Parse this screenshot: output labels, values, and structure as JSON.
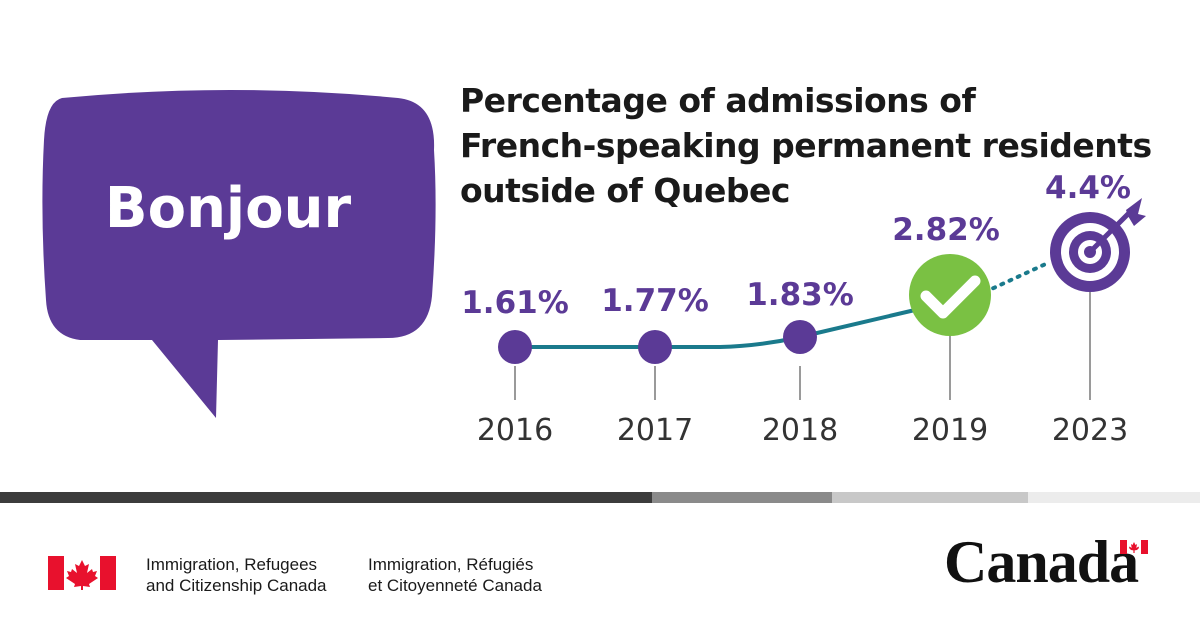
{
  "bubble": {
    "text": "Bonjour",
    "color": "#5b3a96"
  },
  "header": {
    "title_lines": [
      "Percentage of admissions of",
      "French-speaking permanent residents",
      "outside of Quebec"
    ]
  },
  "chart_data": {
    "type": "line",
    "title": "Percentage of admissions of French-speaking permanent residents outside of Quebec",
    "x": [
      "2016",
      "2017",
      "2018",
      "2019",
      "2023"
    ],
    "values": [
      1.61,
      1.77,
      1.83,
      2.82,
      4.4
    ],
    "data_labels": [
      "1.61%",
      "1.77%",
      "1.83%",
      "2.82%",
      "4.4%"
    ],
    "markers": [
      "circle",
      "circle",
      "circle",
      "checkmark-icon",
      "target-icon"
    ],
    "segment_styles": [
      "solid",
      "solid",
      "solid",
      "dotted"
    ],
    "colors": {
      "marker": "#5b3a96",
      "line": "#1a7a8c",
      "check": "#7ac143",
      "label": "#5b3a96",
      "year": "#333333"
    },
    "xlabel": "",
    "ylabel": "",
    "grid": false
  },
  "footer": {
    "dept_en": [
      "Immigration, Refugees",
      "and Citizenship Canada"
    ],
    "dept_fr": [
      "Immigration, Réfugiés",
      "et Citoyenneté Canada"
    ],
    "wordmark": "Canada",
    "flag_red": "#e8112d",
    "band_colors": [
      "#3c3c3c",
      "#8a8a8a",
      "#c8c8c8",
      "#ececec"
    ]
  }
}
